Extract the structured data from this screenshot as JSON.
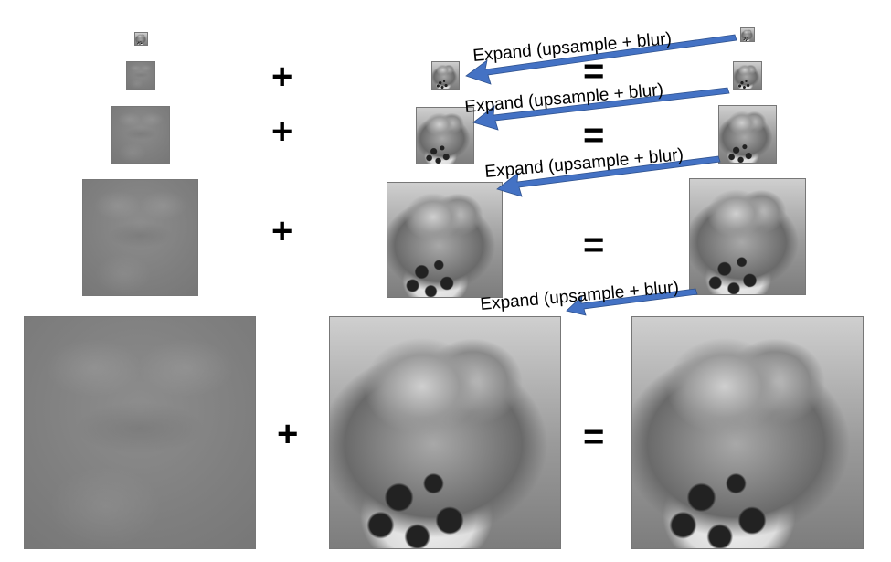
{
  "arrow_label": "Expand (upsample + blur)",
  "plus": "+",
  "equals": "=",
  "colors": {
    "arrow": "#4472c4",
    "arrow_stroke": "#2f528f"
  }
}
